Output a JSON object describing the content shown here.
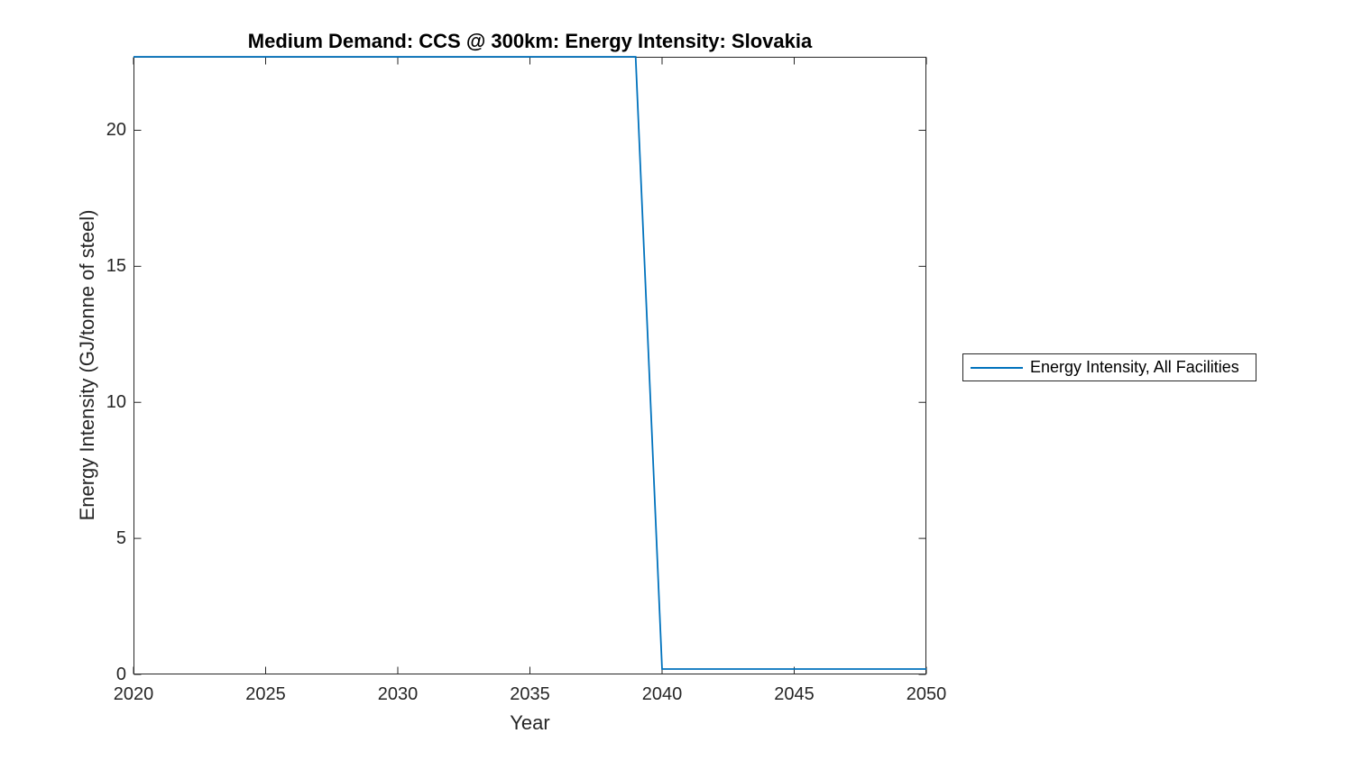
{
  "colors": {
    "line": "#0072BD",
    "axis": "#262626",
    "title_color": "#000000",
    "background": "#ffffff",
    "legend_border": "#262626"
  },
  "chart_data": {
    "type": "line",
    "title": "Medium Demand: CCS @ 300km: Energy Intensity: Slovakia",
    "xlabel": "Year",
    "ylabel": "Energy Intensity (GJ/tonne of steel)",
    "xlim": [
      2020,
      2050
    ],
    "ylim": [
      0,
      22.7
    ],
    "x_ticks": [
      2020,
      2025,
      2030,
      2035,
      2040,
      2045,
      2050
    ],
    "y_ticks": [
      0,
      5,
      10,
      15,
      20
    ],
    "grid": false,
    "box": true,
    "tick_direction": "in",
    "legend_position": "outside-right",
    "series": [
      {
        "name": "Energy Intensity, All Facilities",
        "color": "#0072BD",
        "x": [
          2020,
          2021,
          2022,
          2023,
          2024,
          2025,
          2026,
          2027,
          2028,
          2029,
          2030,
          2031,
          2032,
          2033,
          2034,
          2035,
          2036,
          2037,
          2038,
          2039,
          2040,
          2041,
          2042,
          2043,
          2044,
          2045,
          2046,
          2047,
          2048,
          2049,
          2050
        ],
        "y": [
          22.7,
          22.7,
          22.7,
          22.7,
          22.7,
          22.7,
          22.7,
          22.7,
          22.7,
          22.7,
          22.7,
          22.7,
          22.7,
          22.7,
          22.7,
          22.7,
          22.7,
          22.7,
          22.7,
          22.7,
          0.2,
          0.2,
          0.2,
          0.2,
          0.2,
          0.2,
          0.2,
          0.2,
          0.2,
          0.2,
          0.2
        ]
      }
    ]
  }
}
